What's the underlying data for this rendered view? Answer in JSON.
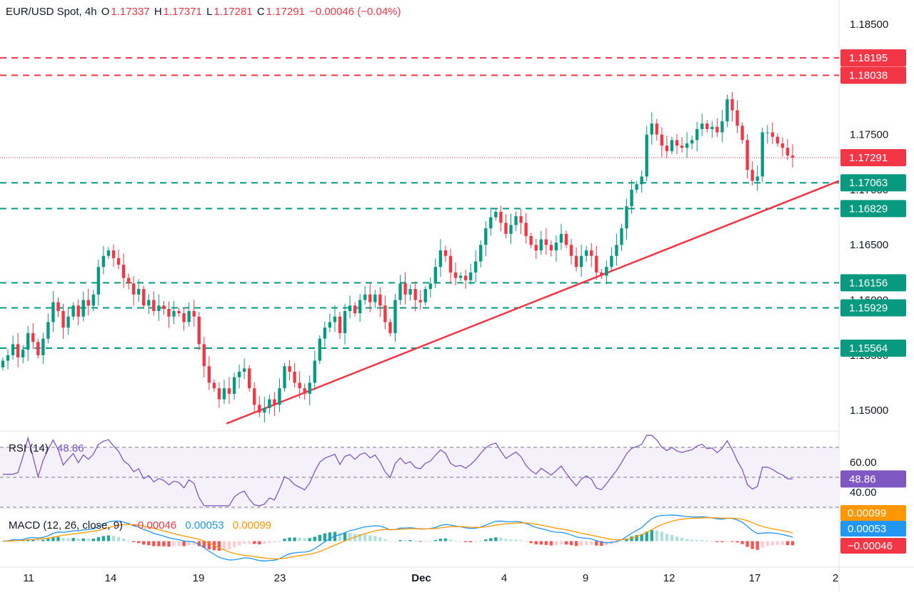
{
  "header": {
    "symbol": "EUR/USD Spot, 4h",
    "open_label": "O",
    "open": "1.17337",
    "high_label": "H",
    "high": "1.17371",
    "low_label": "L",
    "low": "1.17281",
    "close_label": "C",
    "close": "1.17291",
    "change": "−0.00046 (−0.04%)"
  },
  "chart_data": [
    {
      "type": "candlestick",
      "title": "EUR/USD Spot, 4h",
      "x_ticks": [
        "11",
        "14",
        "19",
        "23",
        "Dec",
        "4",
        "9",
        "12",
        "17",
        "2"
      ],
      "y_ticks": [
        "1.15000",
        "1.15500",
        "1.16000",
        "1.16500",
        "1.17000",
        "1.17500",
        "1.18500"
      ],
      "ylim": [
        1.1482,
        1.1872
      ],
      "last_price": "1.17291",
      "levels": [
        {
          "value": 1.18195,
          "label": "1.18195",
          "style": "dashed",
          "color": "#f23645"
        },
        {
          "value": 1.18038,
          "label": "1.18038",
          "style": "dashed",
          "color": "#f23645"
        },
        {
          "value": 1.17063,
          "label": "1.17063",
          "style": "dashed",
          "color": "#089981"
        },
        {
          "value": 1.16829,
          "label": "1.16829",
          "style": "dashed",
          "color": "#089981"
        },
        {
          "value": 1.16156,
          "label": "1.16156",
          "style": "dashed",
          "color": "#089981"
        },
        {
          "value": 1.15929,
          "label": "1.15929",
          "style": "dashed",
          "color": "#089981"
        },
        {
          "value": 1.15564,
          "label": "1.15564",
          "style": "dashed",
          "color": "#089981"
        }
      ],
      "trendline": {
        "from": [
          0.27,
          1.1488
        ],
        "to": [
          1.0,
          1.1708
        ],
        "color": "#f23645"
      },
      "closes": [
        1.1545,
        1.155,
        1.156,
        1.1548,
        1.1555,
        1.157,
        1.1562,
        1.155,
        1.1565,
        1.158,
        1.1598,
        1.159,
        1.1575,
        1.1585,
        1.1595,
        1.1585,
        1.16,
        1.1595,
        1.1605,
        1.163,
        1.164,
        1.1645,
        1.1638,
        1.1632,
        1.162,
        1.1615,
        1.1605,
        1.161,
        1.1595,
        1.16,
        1.159,
        1.1595,
        1.1592,
        1.1585,
        1.159,
        1.1588,
        1.158,
        1.159,
        1.1585,
        1.156,
        1.154,
        1.1525,
        1.152,
        1.151,
        1.152,
        1.1515,
        1.153,
        1.1535,
        1.1538,
        1.152,
        1.1505,
        1.1498,
        1.1502,
        1.151,
        1.1505,
        1.152,
        1.154,
        1.1535,
        1.1525,
        1.152,
        1.1515,
        1.1525,
        1.1545,
        1.1565,
        1.1575,
        1.158,
        1.1585,
        1.157,
        1.159,
        1.1595,
        1.1588,
        1.16,
        1.1605,
        1.1598,
        1.1605,
        1.1595,
        1.158,
        1.157,
        1.16,
        1.1615,
        1.1605,
        1.161,
        1.16,
        1.1598,
        1.161,
        1.1615,
        1.163,
        1.1645,
        1.164,
        1.1625,
        1.162,
        1.1622,
        1.1618,
        1.1625,
        1.1635,
        1.165,
        1.1665,
        1.1675,
        1.168,
        1.167,
        1.166,
        1.1668,
        1.1676,
        1.167,
        1.1658,
        1.165,
        1.1645,
        1.1655,
        1.165,
        1.1645,
        1.1652,
        1.166,
        1.165,
        1.164,
        1.163,
        1.164,
        1.1645,
        1.164,
        1.1625,
        1.1622,
        1.163,
        1.164,
        1.165,
        1.1665,
        1.1685,
        1.17,
        1.1705,
        1.1712,
        1.175,
        1.176,
        1.175,
        1.174,
        1.1735,
        1.1745,
        1.174,
        1.1738,
        1.1742,
        1.1745,
        1.1755,
        1.176,
        1.1755,
        1.1757,
        1.1752,
        1.1762,
        1.1782,
        1.1772,
        1.1758,
        1.1745,
        1.1718,
        1.1708,
        1.1712,
        1.1752,
        1.1752,
        1.1748,
        1.1742,
        1.1738,
        1.1731,
        1.17291
      ],
      "rsi": {
        "label": "RSI (14)",
        "value": "48.86",
        "ticks": [
          "60.00",
          "40.00"
        ],
        "ylim": [
          30,
          80
        ],
        "bands": [
          70,
          50,
          30
        ]
      },
      "macd": {
        "label": "MACD (12, 26, close, 9)",
        "values": [
          "−0.00046",
          "0.00053",
          "0.00099"
        ],
        "series": [
          "histogram",
          "macd",
          "signal"
        ],
        "colors": [
          "#f23645",
          "#2196f3",
          "#ff9800"
        ]
      }
    }
  ],
  "colors": {
    "up": "#089981",
    "down": "#f23645",
    "rsi_line": "#7e57c2",
    "rsi_fill": "#ede7f6",
    "macd": "#2196f3",
    "signal": "#ff9800"
  }
}
